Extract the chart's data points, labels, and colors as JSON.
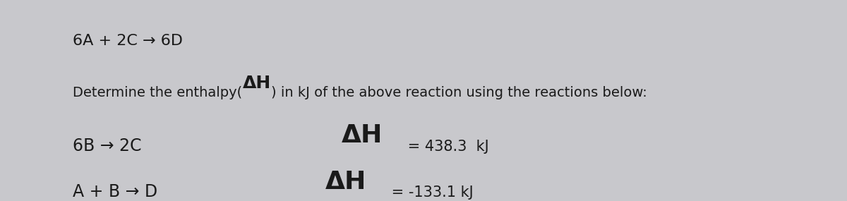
{
  "background_color": "#c8c8cc",
  "left_strip_color": "#8890a8",
  "content_bg": "#d4d4d6",
  "line1": "6A + 2C → 6D",
  "line2_prefix": "Determine the enthalpy(",
  "line2_dh": "ΔH",
  "line2_suffix": ") in kJ of the above reaction using the reactions below:",
  "reaction1_eq": "6B → 2C",
  "reaction1_dh": "ΔH",
  "reaction1_val": " = 438.3  kJ",
  "reaction2_eq": "A + B → D",
  "reaction2_dh": "ΔH",
  "reaction2_val": " = -133.1 kJ",
  "text_color": "#1a1a1a",
  "fs_line1": 16,
  "fs_line2_body": 14,
  "fs_line2_dh": 18,
  "fs_reaction_eq": 17,
  "fs_reaction_dh": 26,
  "fs_reaction_val": 15
}
